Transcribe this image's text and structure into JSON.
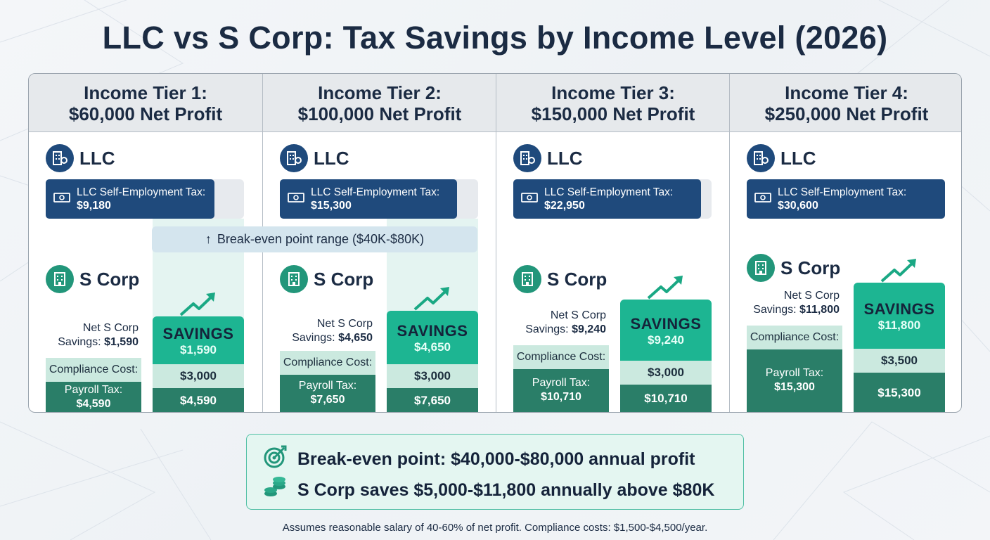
{
  "title": "LLC vs S Corp: Tax Savings by Income Level (2026)",
  "entity_labels": {
    "llc": "LLC",
    "scorp": "S Corp"
  },
  "llc_bar_label": "LLC Self-Employment Tax:",
  "breakeven_band": "Break-even point range ($40K-$80K)",
  "labels": {
    "compliance": "Compliance Cost:",
    "payroll": "Payroll Tax:",
    "net_savings_1": "Net S Corp",
    "net_savings_2": "Savings:",
    "savings_word": "SAVINGS"
  },
  "summary": {
    "line1": "Break-even point: $40,000-$80,000 annual profit",
    "line2": "S Corp saves $5,000-$11,800 annually above $80K"
  },
  "footnote": "Assumes reasonable salary of 40-60% of net profit. Compliance costs: $1,500-$4,500/year.",
  "colors": {
    "llc": "#1f4a7c",
    "payroll": "#2a7e68",
    "compliance": "#cbe9df",
    "savings": "#1db592",
    "breakeven": "#d4e5ee"
  },
  "chart_data": {
    "type": "bar",
    "categories": [
      "Income Tier 1",
      "Income Tier 2",
      "Income Tier 3",
      "Income Tier 4"
    ],
    "tiers": [
      {
        "name": "Income Tier 1:",
        "subtitle": "$60,000 Net Profit",
        "llc_se_tax": 9180,
        "llc_se_tax_label": "$9,180",
        "payroll_tax": 4590,
        "payroll_label": "$4,590",
        "compliance_cost": 3000,
        "compliance_label": "$3,000",
        "net_savings": 1590,
        "net_savings_label": "$1,590"
      },
      {
        "name": "Income Tier 2:",
        "subtitle": "$100,000 Net Profit",
        "llc_se_tax": 15300,
        "llc_se_tax_label": "$15,300",
        "payroll_tax": 7650,
        "payroll_label": "$7,650",
        "compliance_cost": 3000,
        "compliance_label": "$3,000",
        "net_savings": 4650,
        "net_savings_label": "$4,650"
      },
      {
        "name": "Income Tier 3:",
        "subtitle": "$150,000 Net Profit",
        "llc_se_tax": 22950,
        "llc_se_tax_label": "$22,950",
        "payroll_tax": 10710,
        "payroll_label": "$10,710",
        "compliance_cost": 3000,
        "compliance_label": "$3,000",
        "net_savings": 9240,
        "net_savings_label": "$9,240"
      },
      {
        "name": "Income Tier 4:",
        "subtitle": "$250,000 Net Profit",
        "llc_se_tax": 30600,
        "llc_se_tax_label": "$30,600",
        "payroll_tax": 15300,
        "payroll_label": "$15,300",
        "compliance_cost": 3500,
        "compliance_label": "$3,500",
        "net_savings": 11800,
        "net_savings_label": "$11,800"
      }
    ],
    "series": [
      {
        "name": "LLC Self-Employment Tax",
        "values": [
          9180,
          15300,
          22950,
          30600
        ]
      },
      {
        "name": "Payroll Tax",
        "values": [
          4590,
          7650,
          10710,
          15300
        ]
      },
      {
        "name": "Compliance Cost",
        "values": [
          3000,
          3000,
          3000,
          3500
        ]
      },
      {
        "name": "SAVINGS",
        "values": [
          1590,
          4650,
          9240,
          11800
        ]
      }
    ],
    "breakeven_range": [
      40000,
      80000
    ],
    "grid": false
  }
}
